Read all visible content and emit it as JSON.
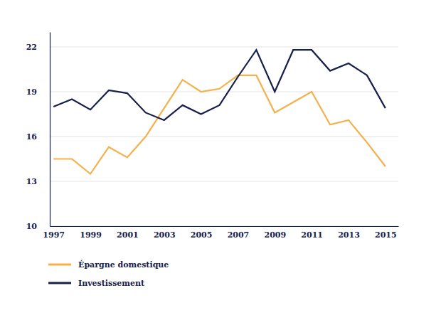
{
  "chart_data": {
    "type": "line",
    "x": [
      1997,
      1998,
      1999,
      2000,
      2001,
      2002,
      2003,
      2004,
      2005,
      2006,
      2007,
      2008,
      2009,
      2010,
      2011,
      2012,
      2013,
      2014,
      2015
    ],
    "series": [
      {
        "name": "Épargne domestique",
        "color": "#f5b04c",
        "values": [
          14.5,
          14.5,
          13.5,
          15.3,
          14.6,
          16.0,
          17.9,
          19.8,
          19.0,
          19.2,
          20.1,
          20.1,
          17.6,
          18.3,
          19.0,
          16.8,
          17.1,
          15.6,
          14.0
        ]
      },
      {
        "name": "Investissement",
        "color": "#16204a",
        "values": [
          18.0,
          18.5,
          17.8,
          19.1,
          18.9,
          17.6,
          17.1,
          18.1,
          17.5,
          18.1,
          20.0,
          21.8,
          19.0,
          21.8,
          21.8,
          20.4,
          20.9,
          20.1,
          17.9
        ]
      }
    ],
    "xlim": [
      1996.8,
      2015.7
    ],
    "xticks": [
      1997,
      1999,
      2001,
      2003,
      2005,
      2007,
      2009,
      2011,
      2013,
      2015
    ],
    "ylim": [
      10,
      23
    ],
    "yticks": [
      10,
      13,
      16,
      19,
      22
    ],
    "grid": true,
    "legend": "bottom"
  }
}
